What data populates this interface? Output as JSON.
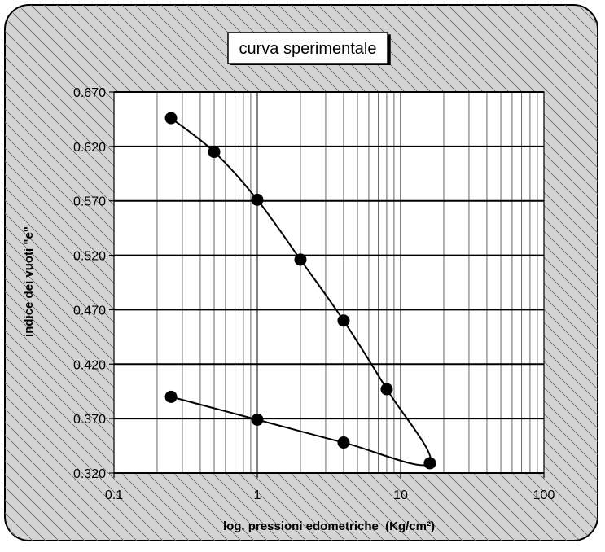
{
  "chart_data": {
    "type": "line",
    "title": "curva sperimentale",
    "xlabel": "log. pressioni edometriche  (Kg/cm²)",
    "ylabel": "indice dei vuoti \"e\"",
    "x_scale": "log",
    "xlim": [
      0.1,
      100
    ],
    "ylim": [
      0.32,
      0.67
    ],
    "x_ticks": [
      "0.1",
      "1",
      "10",
      "100"
    ],
    "y_ticks": [
      "0.320",
      "0.370",
      "0.420",
      "0.470",
      "0.520",
      "0.570",
      "0.620",
      "0.670"
    ],
    "grid": true,
    "series": [
      {
        "points": [
          {
            "x": 0.25,
            "y": 0.646
          },
          {
            "x": 0.5,
            "y": 0.615
          },
          {
            "x": 1,
            "y": 0.571
          },
          {
            "x": 2,
            "y": 0.516
          },
          {
            "x": 4,
            "y": 0.46
          },
          {
            "x": 8,
            "y": 0.397
          },
          {
            "x": 16,
            "y": 0.329
          },
          {
            "x": 4,
            "y": 0.348
          },
          {
            "x": 1,
            "y": 0.369
          },
          {
            "x": 0.25,
            "y": 0.39
          }
        ]
      }
    ]
  },
  "colors": {
    "panel_bg": "#ffffff",
    "frame_bg": "#c8c8c8",
    "hatch": "#5a5a5a",
    "line": "#000000",
    "marker": "#000000"
  }
}
